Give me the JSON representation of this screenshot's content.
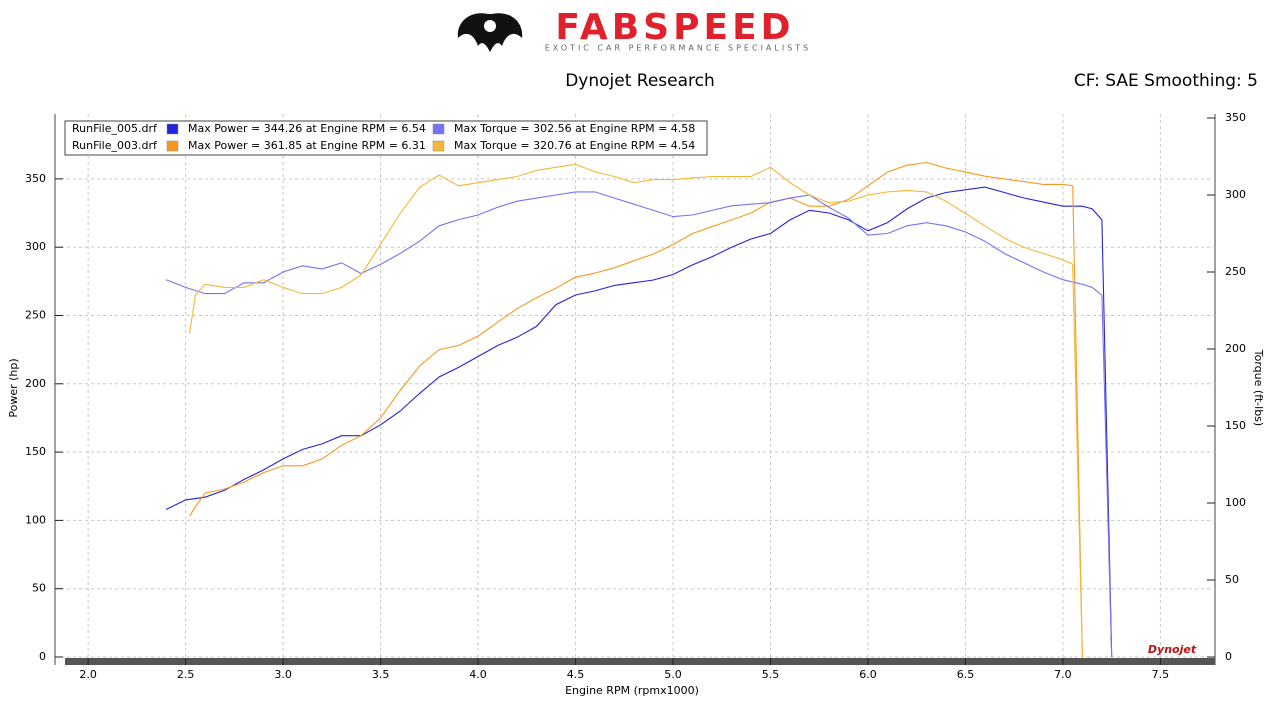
{
  "chart_data": {
    "type": "line",
    "brand": "FABSPEED",
    "tagline": "EXOTIC CAR PERFORMANCE SPECIALISTS",
    "title": "Dynojet Research",
    "correction": "CF: SAE Smoothing: 5",
    "xlabel": "Engine RPM (rpmx1000)",
    "ylabel": "Power (hp)",
    "y2label": "Torque (ft-lbs)",
    "watermark": "Dynojet",
    "legend_runs": [
      "RunFile_005.drf",
      "RunFile_003.drf"
    ],
    "grid": true,
    "xlim": [
      1.83,
      7.78
    ],
    "ylim": [
      0,
      397.5
    ],
    "y2lim": [
      0,
      352.6
    ],
    "xticks": [
      {
        "value": 2,
        "label": "2.0"
      },
      2.5,
      {
        "value": 3,
        "label": "3.0"
      },
      3.5,
      {
        "value": 4,
        "label": "4.0"
      },
      4.5,
      {
        "value": 5,
        "label": "5.0"
      },
      5.5,
      {
        "value": 6,
        "label": "6.0"
      },
      6.5,
      {
        "value": 7,
        "label": "7.0"
      },
      7.5
    ],
    "yticks": [
      0,
      50,
      100,
      150,
      200,
      250,
      300,
      350
    ],
    "y2ticks": [
      0,
      50,
      100,
      150,
      200,
      250,
      300,
      350
    ],
    "series": [
      {
        "name": "Max Power = 344.26 at Engine RPM = 6.54",
        "color": "#2424d8",
        "x": [
          2.4,
          2.5,
          2.6,
          2.7,
          2.8,
          2.9,
          3.0,
          3.1,
          3.2,
          3.3,
          3.4,
          3.5,
          3.6,
          3.7,
          3.8,
          3.9,
          4.0,
          4.1,
          4.2,
          4.3,
          4.4,
          4.5,
          4.6,
          4.7,
          4.8,
          4.9,
          5.0,
          5.1,
          5.2,
          5.3,
          5.4,
          5.5,
          5.6,
          5.7,
          5.8,
          5.9,
          6.0,
          6.1,
          6.2,
          6.3,
          6.4,
          6.5,
          6.6,
          6.7,
          6.8,
          6.9,
          7.0,
          7.1,
          7.15,
          7.2,
          7.25
        ],
        "values": [
          108,
          115,
          117,
          122,
          130,
          137,
          145,
          152,
          156,
          162,
          162,
          170,
          180,
          193,
          205,
          212,
          220,
          228,
          234,
          242,
          258,
          265,
          268,
          272,
          274,
          276,
          280,
          287,
          293,
          300,
          306,
          310,
          320,
          327,
          325,
          320,
          312,
          318,
          328,
          336,
          340,
          342,
          344,
          340,
          336,
          333,
          330,
          330,
          328,
          320,
          0
        ]
      },
      {
        "name": "Max Power = 361.85 at Engine RPM = 6.31",
        "color": "#f59a1e",
        "x": [
          2.52,
          2.55,
          2.6,
          2.7,
          2.8,
          2.9,
          3.0,
          3.1,
          3.2,
          3.3,
          3.4,
          3.5,
          3.6,
          3.7,
          3.8,
          3.9,
          4.0,
          4.1,
          4.2,
          4.3,
          4.4,
          4.5,
          4.6,
          4.7,
          4.8,
          4.9,
          5.0,
          5.1,
          5.2,
          5.3,
          5.4,
          5.5,
          5.6,
          5.7,
          5.8,
          5.9,
          6.0,
          6.1,
          6.2,
          6.3,
          6.4,
          6.5,
          6.6,
          6.7,
          6.8,
          6.9,
          7.0,
          7.05,
          7.1
        ],
        "values": [
          103,
          110,
          120,
          123,
          128,
          135,
          140,
          140,
          145,
          155,
          162,
          175,
          195,
          213,
          225,
          228,
          235,
          245,
          255,
          263,
          270,
          278,
          281,
          285,
          290,
          295,
          302,
          310,
          315,
          320,
          325,
          333,
          336,
          330,
          330,
          335,
          345,
          355,
          360,
          362,
          358,
          355,
          352,
          350,
          348,
          346,
          346,
          345,
          0
        ]
      },
      {
        "name": "Max Torque = 302.56 at Engine RPM = 4.58",
        "color": "#7474f0",
        "axis": "y2",
        "x": [
          2.4,
          2.5,
          2.6,
          2.7,
          2.8,
          2.9,
          3.0,
          3.1,
          3.2,
          3.3,
          3.4,
          3.5,
          3.6,
          3.7,
          3.8,
          3.9,
          4.0,
          4.1,
          4.2,
          4.3,
          4.4,
          4.5,
          4.6,
          4.7,
          4.8,
          4.9,
          5.0,
          5.1,
          5.2,
          5.3,
          5.4,
          5.5,
          5.6,
          5.7,
          5.8,
          5.9,
          6.0,
          6.1,
          6.2,
          6.3,
          6.4,
          6.5,
          6.6,
          6.7,
          6.8,
          6.9,
          7.0,
          7.1,
          7.15,
          7.2,
          7.25
        ],
        "values": [
          245,
          240,
          236,
          236,
          243,
          243,
          250,
          254,
          252,
          256,
          249,
          255,
          262,
          270,
          280,
          284,
          287,
          292,
          296,
          298,
          300,
          302,
          302,
          298,
          294,
          290,
          286,
          287,
          290,
          293,
          294,
          295,
          298,
          300,
          292,
          285,
          274,
          275,
          280,
          282,
          280,
          276,
          270,
          262,
          256,
          250,
          245,
          242,
          240,
          235,
          0
        ]
      },
      {
        "name": "Max Torque = 320.76 at Engine RPM = 4.54",
        "color": "#f5b738",
        "axis": "y2",
        "x": [
          2.52,
          2.55,
          2.6,
          2.7,
          2.8,
          2.9,
          3.0,
          3.1,
          3.2,
          3.3,
          3.4,
          3.5,
          3.6,
          3.7,
          3.8,
          3.9,
          4.0,
          4.1,
          4.2,
          4.3,
          4.4,
          4.5,
          4.6,
          4.7,
          4.8,
          4.9,
          5.0,
          5.1,
          5.2,
          5.3,
          5.4,
          5.5,
          5.6,
          5.7,
          5.8,
          5.9,
          6.0,
          6.1,
          6.2,
          6.3,
          6.4,
          6.5,
          6.6,
          6.7,
          6.8,
          6.9,
          7.0,
          7.05,
          7.1
        ],
        "values": [
          210,
          235,
          242,
          240,
          240,
          245,
          240,
          236,
          236,
          240,
          248,
          268,
          288,
          305,
          313,
          306,
          308,
          310,
          312,
          316,
          318,
          320,
          315,
          312,
          308,
          310,
          310,
          311,
          312,
          312,
          312,
          318,
          308,
          300,
          295,
          296,
          300,
          302,
          303,
          302,
          296,
          288,
          280,
          272,
          266,
          262,
          258,
          255,
          0
        ]
      }
    ]
  }
}
